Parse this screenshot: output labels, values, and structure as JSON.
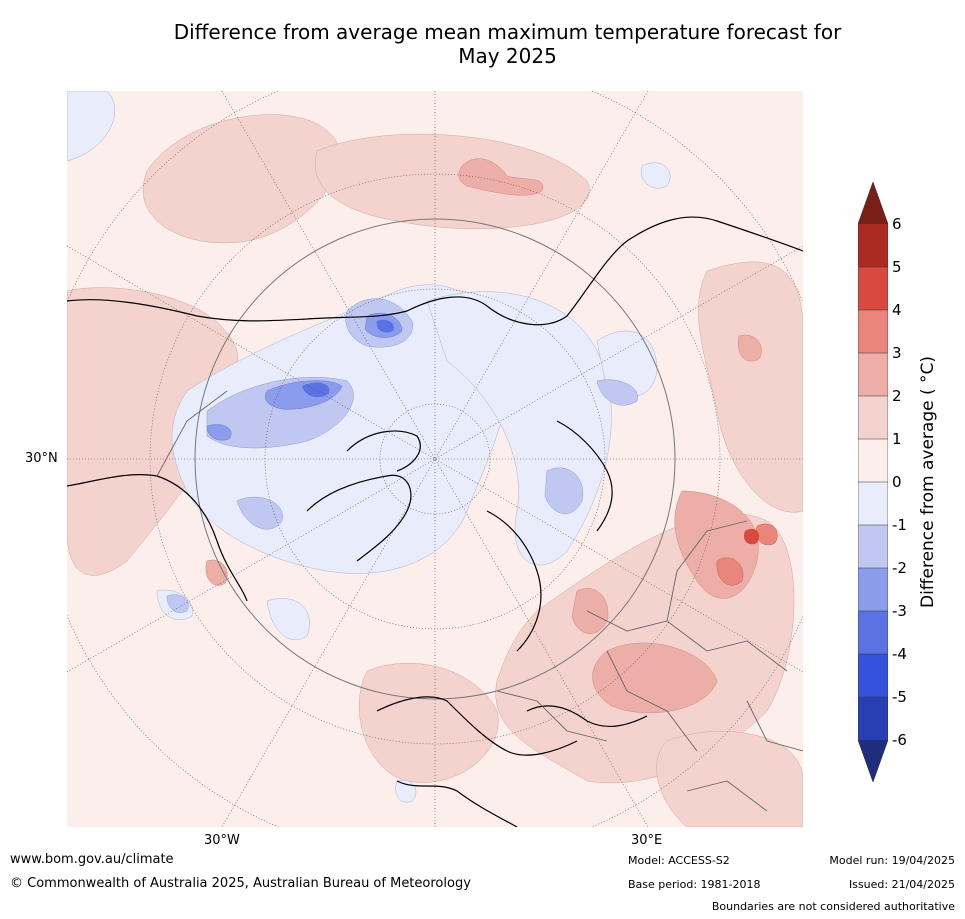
{
  "title": {
    "line1": "Difference from average mean maximum temperature forecast for",
    "line2": "May 2025"
  },
  "map": {
    "graticule_labels": {
      "lat_30n": "30°N",
      "lon_30w": "30°W",
      "lon_30e": "30°E"
    },
    "colors": {
      "ocean_background": "#fbeeeb",
      "land_border": "#000000",
      "country_border": "#666666",
      "graticule": "#555555"
    }
  },
  "colorbar": {
    "label": "Difference from average ( °C)",
    "ticks": [
      "6",
      "5",
      "4",
      "3",
      "2",
      "1",
      "0",
      "-1",
      "-2",
      "-3",
      "-4",
      "-5",
      "-6"
    ],
    "levels_colors": {
      "over": "#7a1f16",
      "5_to_6": "#ab2a22",
      "4_to_5": "#d9493f",
      "3_to_4": "#e9857b",
      "2_to_3": "#ecaea6",
      "1_to_2": "#f4d3cf",
      "0_to_1": "#fbeeeb",
      "m1_to_0": "#e8ecfb",
      "m2_to_m1": "#c0c8f2",
      "m3_to_m2": "#8c9ced",
      "m4_to_m3": "#5b72e2",
      "m5_to_m4": "#3452dc",
      "m6_to_m5": "#283fb4",
      "under": "#1f2d7e"
    }
  },
  "footer": {
    "url": "www.bom.gov.au/climate",
    "copyright": "© Commonwealth of Australia 2025, Australian Bureau of Meteorology",
    "model": "Model: ACCESS-S2",
    "base_period": "Base period: 1981-2018",
    "model_run": "Model run: 19/04/2025",
    "issued": "Issued: 21/04/2025",
    "disclaimer": "Boundaries are not considered authoritative"
  }
}
